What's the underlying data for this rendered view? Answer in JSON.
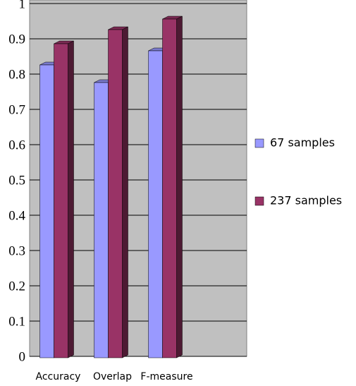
{
  "chart_data": {
    "type": "bar",
    "categories": [
      "Accuracy",
      "Overlap",
      "F-measure"
    ],
    "series": [
      {
        "name": "67 samples",
        "color": "#9999ff",
        "values": [
          0.83,
          0.78,
          0.87
        ]
      },
      {
        "name": "237 samples",
        "color": "#993366",
        "values": [
          0.89,
          0.93,
          0.96
        ]
      }
    ],
    "ylim": [
      0,
      1
    ],
    "yticks": [
      0,
      0.1,
      0.2,
      0.3,
      0.4,
      0.5,
      0.6,
      0.7,
      0.8,
      0.9,
      1
    ],
    "grid": true,
    "legend": "right"
  }
}
